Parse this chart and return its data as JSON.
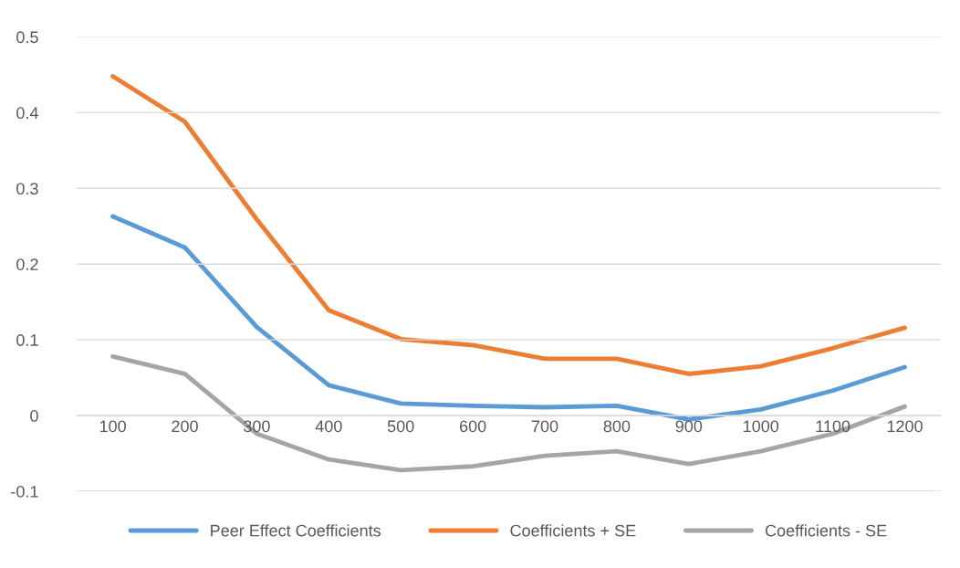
{
  "chart_data": {
    "type": "line",
    "categories": [
      "100",
      "200",
      "300",
      "400",
      "500",
      "600",
      "700",
      "800",
      "900",
      "1000",
      "1100",
      "1200"
    ],
    "series": [
      {
        "name": "Peer Effect Coefficients",
        "color": "#5b9bd5",
        "values": [
          0.263,
          0.222,
          0.117,
          0.04,
          0.016,
          0.013,
          0.011,
          0.013,
          -0.005,
          0.008,
          0.033,
          0.064
        ]
      },
      {
        "name": "Coefficients + SE",
        "color": "#ed7d31",
        "values": [
          0.448,
          0.388,
          0.259,
          0.139,
          0.101,
          0.093,
          0.075,
          0.075,
          0.055,
          0.065,
          0.089,
          0.116
        ]
      },
      {
        "name": "Coefficients - SE",
        "color": "#a5a5a5",
        "values": [
          0.078,
          0.055,
          -0.024,
          -0.058,
          -0.072,
          -0.067,
          -0.053,
          -0.047,
          -0.064,
          -0.047,
          -0.024,
          0.012
        ]
      }
    ],
    "ylim": [
      -0.1,
      0.5
    ],
    "yticks": [
      {
        "value": -0.1,
        "label": "-0.1"
      },
      0,
      0.1,
      0.2,
      0.3,
      0.4,
      0.5
    ],
    "grid": "y",
    "legend": "bottom",
    "marker": "none",
    "line_style": "solid"
  }
}
